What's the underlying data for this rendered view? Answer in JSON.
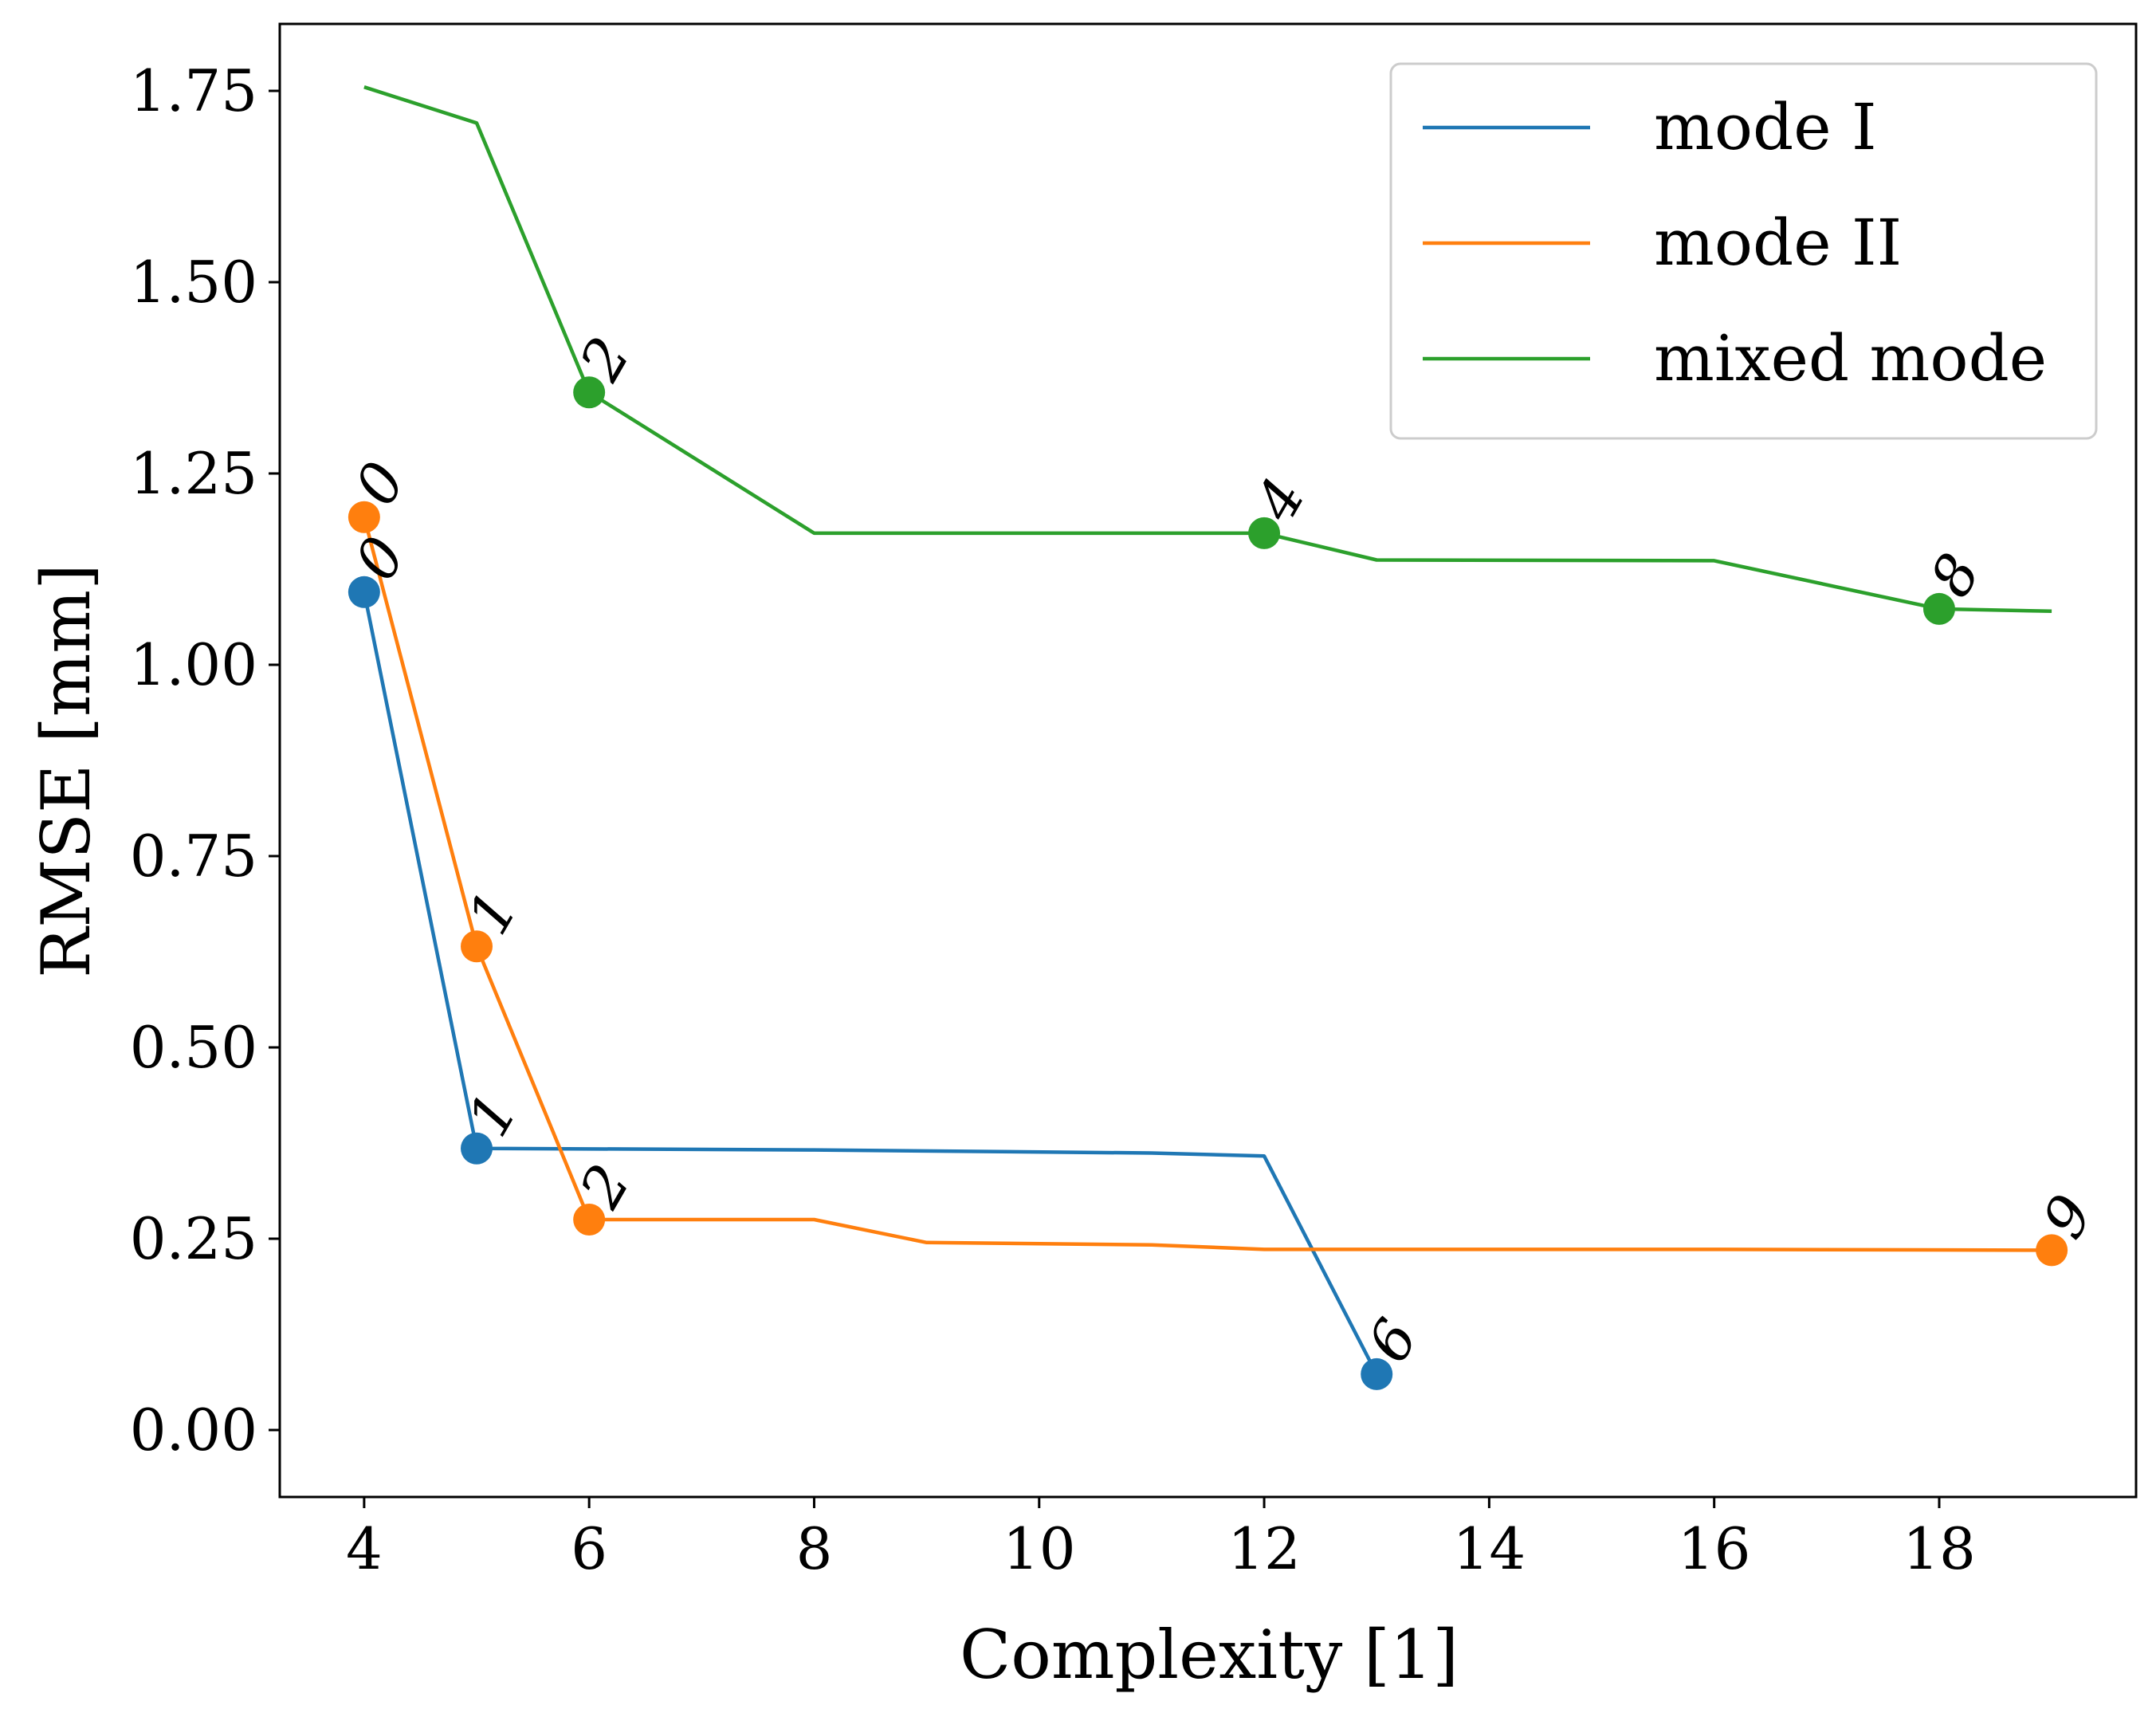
{
  "chart_data": {
    "type": "line",
    "title": "",
    "xlabel": "Complexity [1]",
    "ylabel": "RMSE [mm]",
    "xlim": [
      3.25,
      19.75
    ],
    "ylim": [
      -0.0875,
      1.8375
    ],
    "x_ticks": [
      4,
      6,
      8,
      10,
      12,
      14,
      16,
      18
    ],
    "x_tick_labels": [
      "4",
      "6",
      "8",
      "10",
      "12",
      "14",
      "16",
      "18"
    ],
    "y_ticks": [
      0.0,
      0.25,
      0.5,
      0.75,
      1.0,
      1.25,
      1.5,
      1.75
    ],
    "y_tick_labels": [
      "0.00",
      "0.25",
      "0.50",
      "0.75",
      "1.00",
      "1.25",
      "1.50",
      "1.75"
    ],
    "grid": false,
    "legend_position": "top-right",
    "series": [
      {
        "name": "mode I",
        "color": "#1f77b4",
        "x": [
          4,
          5,
          8,
          11,
          12,
          13
        ],
        "y": [
          1.095,
          0.368,
          0.366,
          0.362,
          0.358,
          0.073
        ],
        "markers": [
          {
            "x": 4,
            "y": 1.095,
            "label": "0"
          },
          {
            "x": 5,
            "y": 0.368,
            "label": "1"
          },
          {
            "x": 13,
            "y": 0.073,
            "label": "6"
          }
        ]
      },
      {
        "name": "mode II",
        "color": "#ff7f0e",
        "x": [
          4,
          5,
          6,
          8,
          9,
          11,
          12,
          16,
          19
        ],
        "y": [
          1.193,
          0.632,
          0.275,
          0.275,
          0.245,
          0.242,
          0.236,
          0.236,
          0.235
        ],
        "markers": [
          {
            "x": 4,
            "y": 1.193,
            "label": "0"
          },
          {
            "x": 5,
            "y": 0.632,
            "label": "1"
          },
          {
            "x": 6,
            "y": 0.275,
            "label": "2"
          },
          {
            "x": 19,
            "y": 0.235,
            "label": "9"
          }
        ]
      },
      {
        "name": "mixed mode",
        "color": "#2ca02c",
        "x": [
          4,
          5,
          6,
          8,
          12,
          13,
          16,
          18,
          19
        ],
        "y": [
          1.755,
          1.708,
          1.356,
          1.172,
          1.172,
          1.137,
          1.136,
          1.073,
          1.07
        ],
        "markers": [
          {
            "x": 6,
            "y": 1.356,
            "label": "2"
          },
          {
            "x": 12,
            "y": 1.172,
            "label": "4"
          },
          {
            "x": 18,
            "y": 1.073,
            "label": "8"
          }
        ]
      }
    ]
  }
}
